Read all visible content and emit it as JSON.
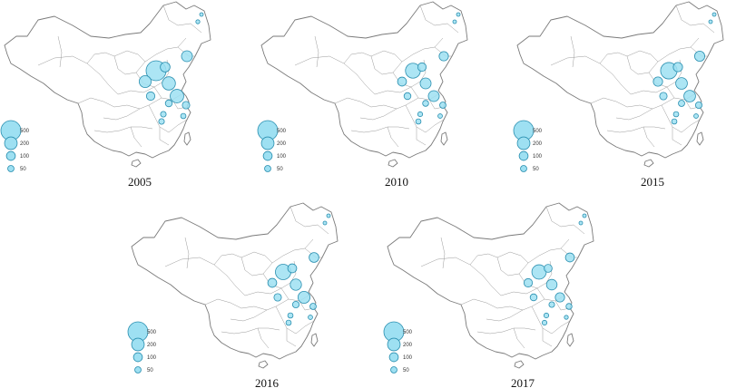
{
  "legend": {
    "levels": [
      {
        "value": 500,
        "label": "500"
      },
      {
        "value": 200,
        "label": "200"
      },
      {
        "value": 100,
        "label": "100"
      },
      {
        "value": 50,
        "label": "50"
      }
    ],
    "fill": "#9ee0f2",
    "stroke": "#2a8fb0"
  },
  "maps": [
    {
      "year": "2005",
      "points": [
        {
          "region": "beijing",
          "value": 500
        },
        {
          "region": "tianjin",
          "value": 120
        },
        {
          "region": "liaoning",
          "value": 150
        },
        {
          "region": "hebei",
          "value": 220
        },
        {
          "region": "shanxi",
          "value": 180
        },
        {
          "region": "shandong",
          "value": 230
        },
        {
          "region": "henan",
          "value": 90
        },
        {
          "region": "jiangsu",
          "value": 60
        },
        {
          "region": "shanghai",
          "value": 70
        },
        {
          "region": "anhui",
          "value": 40
        },
        {
          "region": "zhejiang",
          "value": 35
        },
        {
          "region": "hubei",
          "value": 40
        },
        {
          "region": "jilin",
          "value": 20
        },
        {
          "region": "heilongjiang",
          "value": 5
        }
      ]
    },
    {
      "year": "2010",
      "points": [
        {
          "region": "beijing",
          "value": 280
        },
        {
          "region": "tianjin",
          "value": 90
        },
        {
          "region": "liaoning",
          "value": 110
        },
        {
          "region": "hebei",
          "value": 150
        },
        {
          "region": "shanxi",
          "value": 100
        },
        {
          "region": "shandong",
          "value": 150
        },
        {
          "region": "henan",
          "value": 60
        },
        {
          "region": "jiangsu",
          "value": 45
        },
        {
          "region": "shanghai",
          "value": 50
        },
        {
          "region": "anhui",
          "value": 30
        },
        {
          "region": "zhejiang",
          "value": 25
        },
        {
          "region": "hubei",
          "value": 35
        },
        {
          "region": "jilin",
          "value": 15
        },
        {
          "region": "heilongjiang",
          "value": 5
        }
      ]
    },
    {
      "year": "2015",
      "points": [
        {
          "region": "beijing",
          "value": 340
        },
        {
          "region": "tianjin",
          "value": 110
        },
        {
          "region": "liaoning",
          "value": 130
        },
        {
          "region": "hebei",
          "value": 170
        },
        {
          "region": "shanxi",
          "value": 110
        },
        {
          "region": "shandong",
          "value": 170
        },
        {
          "region": "henan",
          "value": 70
        },
        {
          "region": "jiangsu",
          "value": 50
        },
        {
          "region": "shanghai",
          "value": 55
        },
        {
          "region": "anhui",
          "value": 35
        },
        {
          "region": "zhejiang",
          "value": 25
        },
        {
          "region": "hubei",
          "value": 35
        },
        {
          "region": "jilin",
          "value": 15
        },
        {
          "region": "heilongjiang",
          "value": 5
        }
      ]
    },
    {
      "year": "2016",
      "points": [
        {
          "region": "beijing",
          "value": 300
        },
        {
          "region": "tianjin",
          "value": 100
        },
        {
          "region": "liaoning",
          "value": 120
        },
        {
          "region": "hebei",
          "value": 160
        },
        {
          "region": "shanxi",
          "value": 100
        },
        {
          "region": "shandong",
          "value": 180
        },
        {
          "region": "henan",
          "value": 70
        },
        {
          "region": "jiangsu",
          "value": 55
        },
        {
          "region": "shanghai",
          "value": 50
        },
        {
          "region": "anhui",
          "value": 35
        },
        {
          "region": "zhejiang",
          "value": 25
        },
        {
          "region": "hubei",
          "value": 35
        },
        {
          "region": "jilin",
          "value": 15
        },
        {
          "region": "heilongjiang",
          "value": 5
        }
      ]
    },
    {
      "year": "2017",
      "points": [
        {
          "region": "beijing",
          "value": 260
        },
        {
          "region": "tianjin",
          "value": 80
        },
        {
          "region": "liaoning",
          "value": 100
        },
        {
          "region": "hebei",
          "value": 140
        },
        {
          "region": "shanxi",
          "value": 90
        },
        {
          "region": "shandong",
          "value": 110
        },
        {
          "region": "henan",
          "value": 60
        },
        {
          "region": "jiangsu",
          "value": 40
        },
        {
          "region": "shanghai",
          "value": 45
        },
        {
          "region": "anhui",
          "value": 30
        },
        {
          "region": "zhejiang",
          "value": 20
        },
        {
          "region": "hubei",
          "value": 30
        },
        {
          "region": "jilin",
          "value": 12
        },
        {
          "region": "heilongjiang",
          "value": 5
        }
      ]
    }
  ]
}
